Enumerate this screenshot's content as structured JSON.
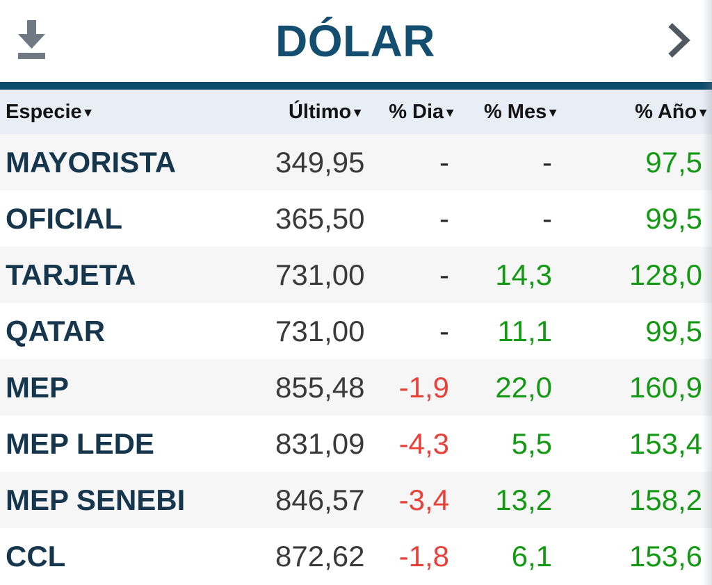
{
  "header": {
    "title": "DÓLAR"
  },
  "icons": {
    "download": "download-icon",
    "chevron_right": "chevron-right-icon",
    "sort_descending": "▼"
  },
  "table": {
    "columns": [
      {
        "key": "especie",
        "label": "Especie",
        "sort_indicator": "▼",
        "align": "left"
      },
      {
        "key": "ultimo",
        "label": "Último",
        "sort_indicator": "▼",
        "align": "right"
      },
      {
        "key": "dia",
        "label": "% Dia",
        "sort_indicator": "▼",
        "align": "right"
      },
      {
        "key": "mes",
        "label": "% Mes",
        "sort_indicator": "▼",
        "align": "right"
      },
      {
        "key": "ano",
        "label": "% Año",
        "sort_indicator": "▼",
        "align": "right"
      }
    ],
    "rows": [
      {
        "cells": [
          {
            "text": "MAYORISTA",
            "state": "especie"
          },
          {
            "text": "349,95",
            "state": "number"
          },
          {
            "text": "-",
            "state": "dash"
          },
          {
            "text": "-",
            "state": "dash"
          },
          {
            "text": "97,5",
            "state": "up"
          }
        ]
      },
      {
        "cells": [
          {
            "text": "OFICIAL",
            "state": "especie"
          },
          {
            "text": "365,50",
            "state": "number"
          },
          {
            "text": "-",
            "state": "dash"
          },
          {
            "text": "-",
            "state": "dash"
          },
          {
            "text": "99,5",
            "state": "up"
          }
        ]
      },
      {
        "cells": [
          {
            "text": "TARJETA",
            "state": "especie"
          },
          {
            "text": "731,00",
            "state": "number"
          },
          {
            "text": "-",
            "state": "dash"
          },
          {
            "text": "14,3",
            "state": "up"
          },
          {
            "text": "128,0",
            "state": "up"
          }
        ]
      },
      {
        "cells": [
          {
            "text": "QATAR",
            "state": "especie"
          },
          {
            "text": "731,00",
            "state": "number"
          },
          {
            "text": "-",
            "state": "dash"
          },
          {
            "text": "11,1",
            "state": "up"
          },
          {
            "text": "99,5",
            "state": "up"
          }
        ]
      },
      {
        "cells": [
          {
            "text": "MEP",
            "state": "especie"
          },
          {
            "text": "855,48",
            "state": "number"
          },
          {
            "text": "-1,9",
            "state": "down"
          },
          {
            "text": "22,0",
            "state": "up"
          },
          {
            "text": "160,9",
            "state": "up"
          }
        ]
      },
      {
        "cells": [
          {
            "text": "MEP LEDE",
            "state": "especie"
          },
          {
            "text": "831,09",
            "state": "number"
          },
          {
            "text": "-4,3",
            "state": "down"
          },
          {
            "text": "5,5",
            "state": "up"
          },
          {
            "text": "153,4",
            "state": "up"
          }
        ]
      },
      {
        "cells": [
          {
            "text": "MEP SENEBI",
            "state": "especie"
          },
          {
            "text": "846,57",
            "state": "number"
          },
          {
            "text": "-3,4",
            "state": "down"
          },
          {
            "text": "13,2",
            "state": "up"
          },
          {
            "text": "158,2",
            "state": "up"
          }
        ]
      },
      {
        "cells": [
          {
            "text": "CCL",
            "state": "especie"
          },
          {
            "text": "872,62",
            "state": "number"
          },
          {
            "text": "-1,8",
            "state": "down"
          },
          {
            "text": "6,1",
            "state": "up"
          },
          {
            "text": "153,6",
            "state": "up"
          }
        ]
      }
    ]
  },
  "colors": {
    "accent_navy": "#134e70",
    "teal_bar": "#0c4c6b",
    "header_row_bg": "#e8edf6",
    "row_alt_bg": "#f6f6f6",
    "positive_green": "#149914",
    "negative_red": "#e8413a",
    "value_text": "#3a3a3a",
    "especie_text": "#16364d",
    "icon_gray": "#6e7983",
    "chevron_gray": "#51585f"
  }
}
